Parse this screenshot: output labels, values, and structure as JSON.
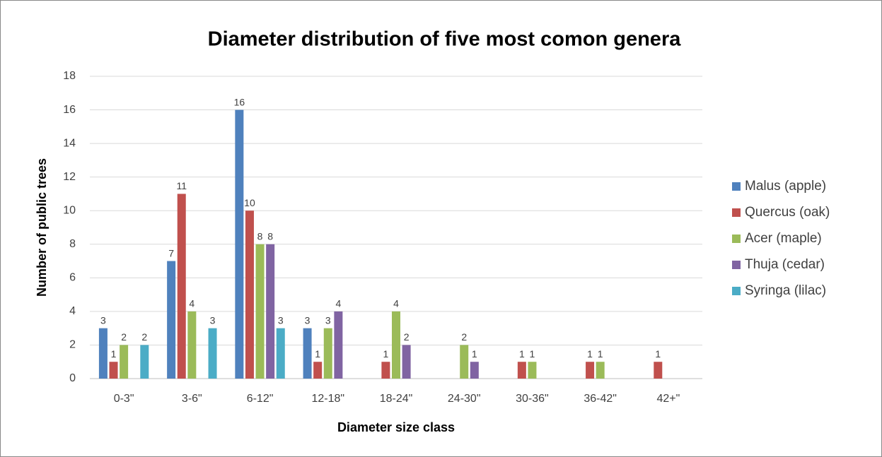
{
  "chart_data": {
    "type": "bar",
    "title": "Diameter distribution of five most comon genera",
    "x_label": "Diameter size class",
    "y_label": "Number of public trees",
    "categories": [
      "0-3\"",
      "3-6\"",
      "6-12\"",
      "12-18\"",
      "18-24\"",
      "24-30\"",
      "30-36\"",
      "36-42\"",
      "42+\""
    ],
    "series": [
      {
        "name": "Malus (apple)",
        "color": "#4f81bd",
        "values": [
          3,
          7,
          16,
          3,
          null,
          null,
          null,
          null,
          null
        ]
      },
      {
        "name": "Quercus (oak)",
        "color": "#c0504d",
        "values": [
          1,
          11,
          10,
          1,
          1,
          null,
          1,
          1,
          1
        ]
      },
      {
        "name": "Acer (maple)",
        "color": "#9bbb59",
        "values": [
          2,
          4,
          8,
          3,
          4,
          2,
          1,
          1,
          null
        ]
      },
      {
        "name": "Thuja (cedar)",
        "color": "#8064a2",
        "values": [
          null,
          null,
          8,
          4,
          2,
          1,
          null,
          null,
          null
        ]
      },
      {
        "name": "Syringa (lilac)",
        "color": "#4bacc6",
        "values": [
          2,
          3,
          3,
          null,
          null,
          null,
          null,
          null,
          null
        ]
      }
    ],
    "ylim": [
      0,
      18
    ],
    "yticks": [
      0,
      2,
      4,
      6,
      8,
      10,
      12,
      14,
      16,
      18
    ],
    "grid": true,
    "legend": "right"
  }
}
